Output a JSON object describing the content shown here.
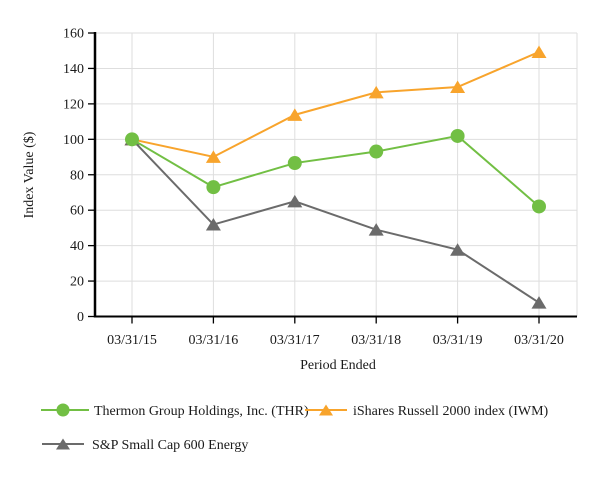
{
  "chart_data": {
    "type": "line",
    "title": "",
    "xlabel": "Period Ended",
    "ylabel": "Index Value ($)",
    "categories": [
      "03/31/15",
      "03/31/16",
      "03/31/17",
      "03/31/18",
      "03/31/19",
      "03/31/20"
    ],
    "series": [
      {
        "name": "Thermon Group Holdings, Inc. (THR)",
        "marker": "circle",
        "color": "#72BF44",
        "values": [
          100,
          73.0,
          86.6,
          93.1,
          101.9,
          62.1
        ]
      },
      {
        "name": "iShares Russell 2000 index (IWM)",
        "marker": "triangle",
        "color": "#F8A42C",
        "values": [
          100,
          90.1,
          113.8,
          126.5,
          129.5,
          149.3
        ]
      },
      {
        "name": "S&P Small Cap 600 Energy",
        "marker": "triangle",
        "color": "#6B6B6B",
        "values": [
          100,
          51.9,
          65.0,
          49.0,
          37.7,
          7.8
        ]
      }
    ],
    "ylim": [
      0,
      160
    ],
    "yticks": [
      0,
      20,
      40,
      60,
      80,
      100,
      120,
      140,
      160
    ],
    "grid": true,
    "legend_position": "bottom-left"
  },
  "colors": {
    "grid": "#DEDEDE",
    "axis": "#000000",
    "text": "#1a1a1a",
    "background": "#FFFFFF"
  }
}
